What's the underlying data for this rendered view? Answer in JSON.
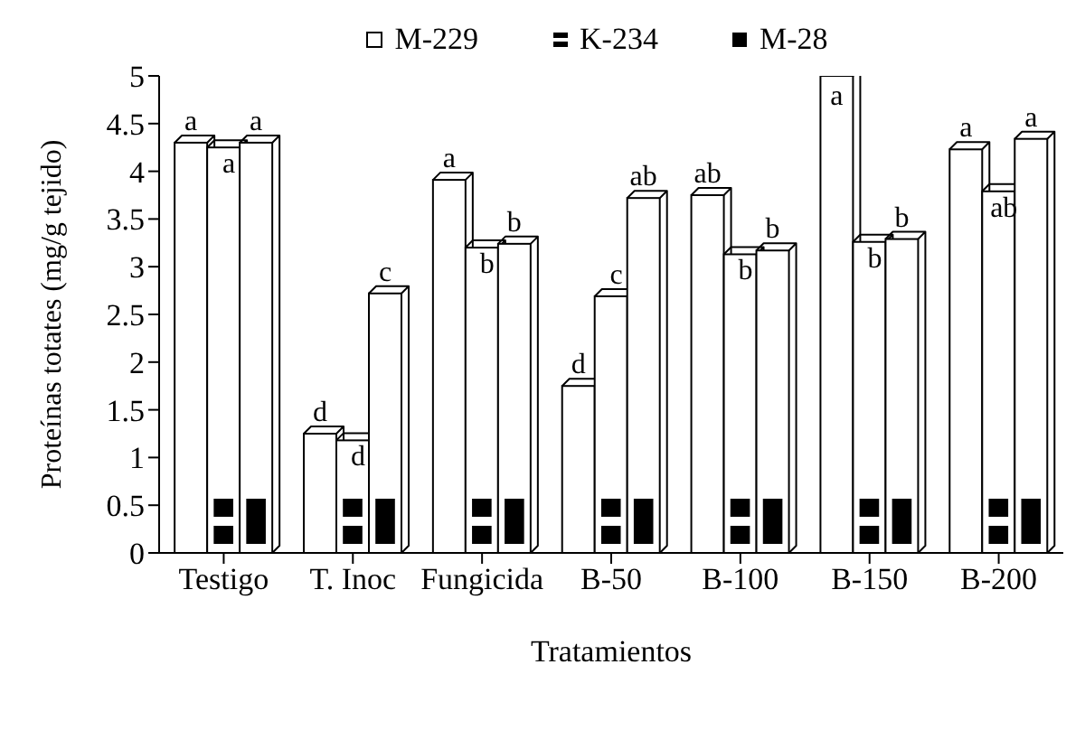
{
  "chart_data": {
    "type": "bar",
    "xlabel": "Tratamientos",
    "ylabel": "Proteínas totates (mg/g tejido)",
    "categories": [
      "Testigo",
      "T. Inoc",
      "Fungicida",
      "B-50",
      "B-100",
      "B-150",
      "B-200"
    ],
    "series": [
      {
        "name": "M-229",
        "color": "#ffffff",
        "values": [
          4.3,
          1.25,
          3.91,
          1.75,
          3.75,
          5.0,
          4.23
        ],
        "value_labels": [
          "a",
          "d",
          "a",
          "d",
          "ab",
          "a",
          "a"
        ]
      },
      {
        "name": "K-234",
        "color": "#ffffff",
        "values": [
          4.25,
          1.18,
          3.2,
          2.69,
          3.13,
          3.26,
          3.79
        ],
        "value_labels": [
          "a",
          "d",
          "b",
          "c",
          "b",
          "b",
          "ab"
        ]
      },
      {
        "name": "M-28",
        "color": "#ffffff",
        "values": [
          4.3,
          2.72,
          3.24,
          3.72,
          3.17,
          3.29,
          4.34
        ],
        "value_labels": [
          "a",
          "c",
          "b",
          "ab",
          "b",
          "b",
          "a"
        ]
      }
    ],
    "ylim": [
      0,
      5
    ],
    "yticks": [
      0,
      0.5,
      1,
      1.5,
      2,
      2.5,
      3,
      3.5,
      4,
      4.5,
      5
    ],
    "legend": "top"
  }
}
